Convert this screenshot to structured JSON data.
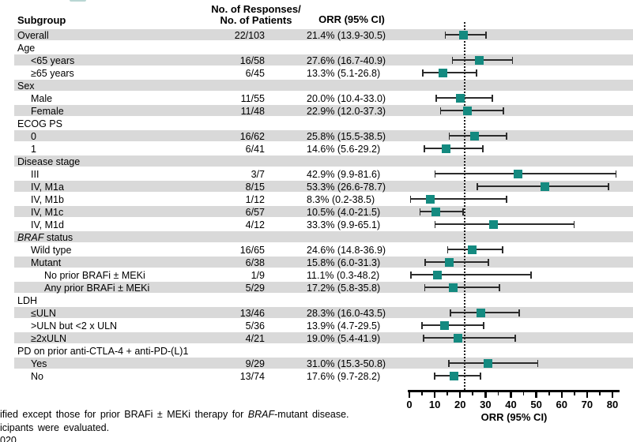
{
  "table_header": {
    "subgroup": "Subgroup",
    "responses_line1": "No. of Responses/",
    "responses_line2": "No. of Patients",
    "orr": "ORR (95% CI)"
  },
  "colors": {
    "marker": "#148a80",
    "row_shade": "#d9d9d9",
    "ci_line": "#2b2b2b"
  },
  "chart_data": {
    "type": "forest",
    "xlabel": "ORR (95% CI)",
    "xlim": [
      0,
      80
    ],
    "major_ticks": [
      0,
      10,
      20,
      30,
      40,
      50,
      60,
      70,
      80
    ],
    "minor_ticks": [
      5,
      15,
      25,
      35,
      45,
      55,
      65,
      75
    ],
    "reference_line": 21.4,
    "grid": false,
    "rows": [
      {
        "label": "Overall",
        "indent": 0,
        "n": "22/103",
        "orr_text": "21.4% (13.9-30.5)",
        "est": 21.4,
        "lo": 13.9,
        "hi": 30.5
      },
      {
        "label": "Age",
        "indent": 0
      },
      {
        "label": "<65 years",
        "indent": 1,
        "n": "16/58",
        "orr_text": "27.6% (16.7-40.9)",
        "est": 27.6,
        "lo": 16.7,
        "hi": 40.9
      },
      {
        "label": "≥65 years",
        "indent": 1,
        "n": "6/45",
        "orr_text": "13.3% (5.1-26.8)",
        "est": 13.3,
        "lo": 5.1,
        "hi": 26.8
      },
      {
        "label": "Sex",
        "indent": 0
      },
      {
        "label": "Male",
        "indent": 1,
        "n": "11/55",
        "orr_text": "20.0% (10.4-33.0)",
        "est": 20.0,
        "lo": 10.4,
        "hi": 33.0
      },
      {
        "label": "Female",
        "indent": 1,
        "n": "11/48",
        "orr_text": "22.9% (12.0-37.3)",
        "est": 22.9,
        "lo": 12.0,
        "hi": 37.3
      },
      {
        "label": "ECOG PS",
        "indent": 0
      },
      {
        "label": "0",
        "indent": 1,
        "n": "16/62",
        "orr_text": "25.8% (15.5-38.5)",
        "est": 25.8,
        "lo": 15.5,
        "hi": 38.5
      },
      {
        "label": "1",
        "indent": 1,
        "n": "6/41",
        "orr_text": "14.6% (5.6-29.2)",
        "est": 14.6,
        "lo": 5.6,
        "hi": 29.2
      },
      {
        "label": "Disease stage",
        "indent": 0
      },
      {
        "label": "III",
        "indent": 1,
        "n": "3/7",
        "orr_text": "42.9% (9.9-81.6)",
        "est": 42.9,
        "lo": 9.9,
        "hi": 81.6
      },
      {
        "label": "IV, M1a",
        "indent": 1,
        "n": "8/15",
        "orr_text": "53.3% (26.6-78.7)",
        "est": 53.3,
        "lo": 26.6,
        "hi": 78.7
      },
      {
        "label": "IV, M1b",
        "indent": 1,
        "n": "1/12",
        "orr_text": "8.3% (0.2-38.5)",
        "est": 8.3,
        "lo": 0.2,
        "hi": 38.5
      },
      {
        "label": "IV, M1c",
        "indent": 1,
        "n": "6/57",
        "orr_text": "10.5% (4.0-21.5)",
        "est": 10.5,
        "lo": 4.0,
        "hi": 21.5
      },
      {
        "label": "IV, M1d",
        "indent": 1,
        "n": "4/12",
        "orr_text": "33.3% (9.9-65.1)",
        "est": 33.3,
        "lo": 9.9,
        "hi": 65.1
      },
      {
        "label": [
          {
            "t": "BRAF",
            "i": true
          },
          {
            "t": " status"
          }
        ],
        "indent": 0
      },
      {
        "label": "Wild type",
        "indent": 1,
        "n": "16/65",
        "orr_text": "24.6% (14.8-36.9)",
        "est": 24.6,
        "lo": 14.8,
        "hi": 36.9
      },
      {
        "label": "Mutant",
        "indent": 1,
        "n": "6/38",
        "orr_text": "15.8% (6.0-31.3)",
        "est": 15.8,
        "lo": 6.0,
        "hi": 31.3
      },
      {
        "label": "No prior BRAFi ± MEKi",
        "indent": 2,
        "n": "1/9",
        "orr_text": "11.1% (0.3-48.2)",
        "est": 11.1,
        "lo": 0.3,
        "hi": 48.2
      },
      {
        "label": "Any prior BRAFi ± MEKi",
        "indent": 2,
        "n": "5/29",
        "orr_text": "17.2% (5.8-35.8)",
        "est": 17.2,
        "lo": 5.8,
        "hi": 35.8
      },
      {
        "label": "LDH",
        "indent": 0
      },
      {
        "label": "≤ULN",
        "indent": 1,
        "n": "13/46",
        "orr_text": "28.3% (16.0-43.5)",
        "est": 28.3,
        "lo": 16.0,
        "hi": 43.5
      },
      {
        "label": ">ULN but <2 x ULN",
        "indent": 1,
        "n": "5/36",
        "orr_text": "13.9% (4.7-29.5)",
        "est": 13.9,
        "lo": 4.7,
        "hi": 29.5
      },
      {
        "label": "≥2xULN",
        "indent": 1,
        "n": "4/21",
        "orr_text": "19.0% (5.4-41.9)",
        "est": 19.0,
        "lo": 5.4,
        "hi": 41.9
      },
      {
        "label": "PD on prior anti-CTLA-4 + anti-PD-(L)1",
        "indent": 0
      },
      {
        "label": "Yes",
        "indent": 1,
        "n": "9/29",
        "orr_text": "31.0% (15.3-50.8)",
        "est": 31.0,
        "lo": 15.3,
        "hi": 50.8
      },
      {
        "label": "No",
        "indent": 1,
        "n": "13/74",
        "orr_text": "17.6% (9.7-28.2)",
        "est": 17.6,
        "lo": 9.7,
        "hi": 28.2
      }
    ]
  },
  "footnotes": [
    [
      {
        "t": "ified except those for prior BRAFi ± MEKi therapy for "
      },
      {
        "t": "BRAF",
        "i": true
      },
      {
        "t": "-mutant disease."
      }
    ],
    [
      {
        "t": "icipants were evaluated."
      }
    ],
    [
      {
        "t": "020"
      }
    ]
  ]
}
